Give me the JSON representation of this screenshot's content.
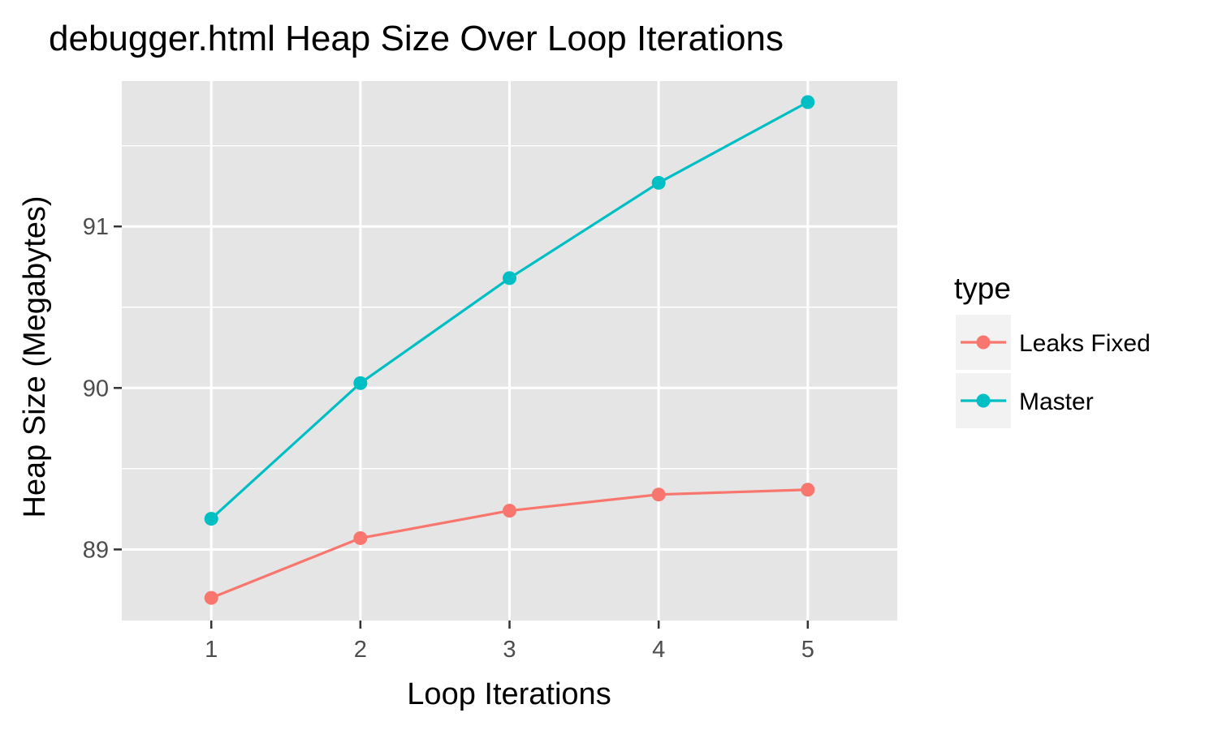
{
  "chart_data": {
    "type": "line",
    "title": "debugger.html Heap Size Over Loop Iterations",
    "xlabel": "Loop Iterations",
    "ylabel": "Heap Size (Megabytes)",
    "x": [
      1,
      2,
      3,
      4,
      5
    ],
    "x_ticks": [
      "1",
      "2",
      "3",
      "4",
      "5"
    ],
    "xlim": [
      0.4,
      5.6
    ],
    "y_ticks": [
      89,
      90,
      91
    ],
    "y_tick_labels": [
      "89",
      "90",
      "91"
    ],
    "ylim": [
      88.56,
      91.9
    ],
    "grid": true,
    "legend": {
      "title": "type",
      "position": "right"
    },
    "series": [
      {
        "name": "Leaks Fixed",
        "color": "#F8766D",
        "values": [
          88.7,
          89.07,
          89.24,
          89.34,
          89.37
        ]
      },
      {
        "name": "Master",
        "color": "#00BFC4",
        "values": [
          89.19,
          90.03,
          90.68,
          91.27,
          91.77
        ]
      }
    ]
  },
  "colors": {
    "panel_bg": "#E5E5E5",
    "grid_major": "#FFFFFF",
    "legend_key_bg": "#F2F2F2"
  }
}
